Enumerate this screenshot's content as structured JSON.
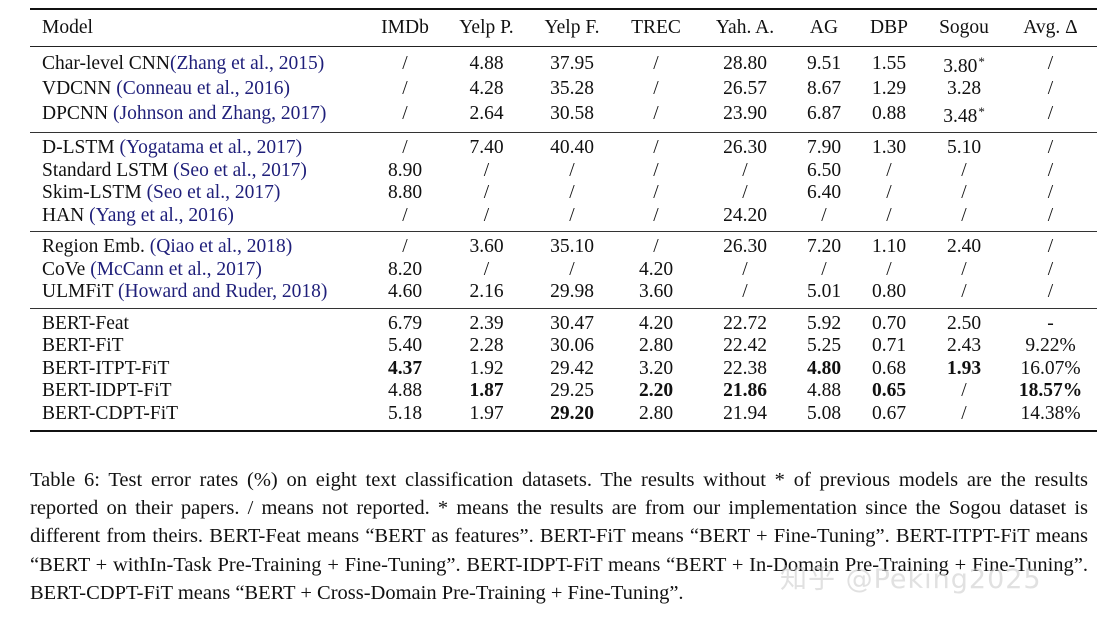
{
  "table": {
    "columns": [
      "Model",
      "IMDb",
      "Yelp P.",
      "Yelp F.",
      "TREC",
      "Yah. A.",
      "AG",
      "DBP",
      "Sogou",
      "Avg. Δ"
    ],
    "groups": [
      {
        "rows": [
          {
            "name": "Char-level CNN",
            "cite": "(Zhang et al., 2015)",
            "sep": "",
            "values": [
              "/",
              "4.88",
              "37.95",
              "/",
              "28.80",
              "9.51",
              "1.55",
              "3.80",
              "/"
            ],
            "star": [
              false,
              false,
              false,
              false,
              false,
              false,
              false,
              true,
              false
            ],
            "bold": [
              false,
              false,
              false,
              false,
              false,
              false,
              false,
              false,
              false
            ]
          },
          {
            "name": "VDCNN",
            "cite": "(Conneau et al., 2016)",
            "sep": " ",
            "values": [
              "/",
              "4.28",
              "35.28",
              "/",
              "26.57",
              "8.67",
              "1.29",
              "3.28",
              "/"
            ],
            "star": [
              false,
              false,
              false,
              false,
              false,
              false,
              false,
              false,
              false
            ],
            "bold": [
              false,
              false,
              false,
              false,
              false,
              false,
              false,
              false,
              false
            ]
          },
          {
            "name": "DPCNN",
            "cite": "(Johnson and Zhang, 2017)",
            "sep": " ",
            "values": [
              "/",
              "2.64",
              "30.58",
              "/",
              "23.90",
              "6.87",
              "0.88",
              "3.48",
              "/"
            ],
            "star": [
              false,
              false,
              false,
              false,
              false,
              false,
              false,
              true,
              false
            ],
            "bold": [
              false,
              false,
              false,
              false,
              false,
              false,
              false,
              false,
              false
            ]
          }
        ]
      },
      {
        "rows": [
          {
            "name": "D-LSTM",
            "cite": "(Yogatama et al., 2017)",
            "sep": " ",
            "values": [
              "/",
              "7.40",
              "40.40",
              "/",
              "26.30",
              "7.90",
              "1.30",
              "5.10",
              "/"
            ]
          },
          {
            "name": "Standard LSTM",
            "cite": "(Seo et al., 2017)",
            "sep": " ",
            "values": [
              "8.90",
              "/",
              "/",
              "/",
              "/",
              "6.50",
              "/",
              "/",
              "/"
            ]
          },
          {
            "name": "Skim-LSTM",
            "cite": "(Seo et al., 2017)",
            "sep": " ",
            "values": [
              "8.80",
              "/",
              "/",
              "/",
              "/",
              "6.40",
              "/",
              "/",
              "/"
            ]
          },
          {
            "name": "HAN",
            "cite": "(Yang et al., 2016)",
            "sep": " ",
            "values": [
              "/",
              "/",
              "/",
              "/",
              "24.20",
              "/",
              "/",
              "/",
              "/"
            ]
          }
        ]
      },
      {
        "rows": [
          {
            "name": "Region Emb.",
            "cite": "(Qiao et al., 2018)",
            "sep": " ",
            "values": [
              "/",
              "3.60",
              "35.10",
              "/",
              "26.30",
              "7.20",
              "1.10",
              "2.40",
              "/"
            ]
          },
          {
            "name": "CoVe",
            "cite": "(McCann et al., 2017)",
            "sep": " ",
            "values": [
              "8.20",
              "/",
              "/",
              "4.20",
              "/",
              "/",
              "/",
              "/",
              "/"
            ]
          },
          {
            "name": "ULMFiT",
            "cite": "(Howard and Ruder, 2018)",
            "sep": " ",
            "values": [
              "4.60",
              "2.16",
              "29.98",
              "3.60",
              "/",
              "5.01",
              "0.80",
              "/",
              "/"
            ]
          }
        ]
      },
      {
        "rows": [
          {
            "name": "BERT-Feat",
            "cite": "",
            "sep": "",
            "values": [
              "6.79",
              "2.39",
              "30.47",
              "4.20",
              "22.72",
              "5.92",
              "0.70",
              "2.50",
              "-"
            ]
          },
          {
            "name": "BERT-FiT",
            "cite": "",
            "sep": "",
            "values": [
              "5.40",
              "2.28",
              "30.06",
              "2.80",
              "22.42",
              "5.25",
              "0.71",
              "2.43",
              "9.22%"
            ]
          },
          {
            "name": "BERT-ITPT-FiT",
            "cite": "",
            "sep": "",
            "values": [
              "4.37",
              "1.92",
              "29.42",
              "3.20",
              "22.38",
              "4.80",
              "0.68",
              "1.93",
              "16.07%"
            ],
            "bold": [
              true,
              false,
              false,
              false,
              false,
              true,
              false,
              true,
              false
            ]
          },
          {
            "name": "BERT-IDPT-FiT",
            "cite": "",
            "sep": "",
            "values": [
              "4.88",
              "1.87",
              "29.25",
              "2.20",
              "21.86",
              "4.88",
              "0.65",
              "/",
              "18.57%"
            ],
            "bold": [
              false,
              true,
              false,
              true,
              true,
              false,
              true,
              false,
              true
            ]
          },
          {
            "name": "BERT-CDPT-FiT",
            "cite": "",
            "sep": "",
            "values": [
              "5.18",
              "1.97",
              "29.20",
              "2.80",
              "21.94",
              "5.08",
              "0.67",
              "/",
              "14.38%"
            ],
            "bold": [
              false,
              false,
              true,
              false,
              false,
              false,
              false,
              false,
              false
            ]
          }
        ]
      }
    ]
  },
  "caption": {
    "text": "Table 6:  Test error rates (%) on eight text classification datasets. The results without * of previous models are the results reported on their papers. / means not reported. * means the results are from our implementation since the Sogou dataset is different from theirs. BERT-Feat means “BERT as features”. BERT-FiT means “BERT + Fine-Tuning”.  BERT-ITPT-FiT means “BERT + withIn-Task Pre-Training + Fine-Tuning”.  BERT-IDPT-FiT means “BERT + In-Domain Pre-Training + Fine-Tuning”. BERT-CDPT-FiT means “BERT + Cross-Domain Pre-Training + Fine-Tuning”."
  },
  "watermark": "知乎 @Peking2025",
  "colors": {
    "citation": "#1f1f7a",
    "text": "#111111",
    "rule": "#111111"
  }
}
